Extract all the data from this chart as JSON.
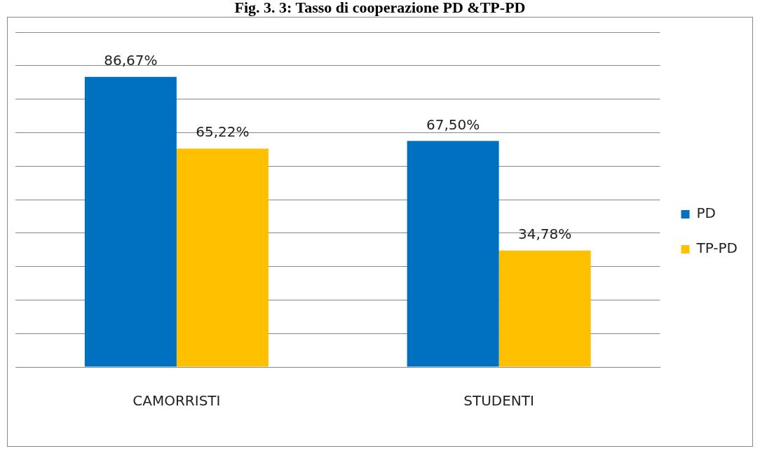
{
  "chart_data": {
    "type": "bar",
    "title": "Fig. 3. 3: Tasso di cooperazione PD &TP-PD",
    "categories": [
      "CAMORRISTI",
      "STUDENTI"
    ],
    "series": [
      {
        "name": "PD",
        "color": "#0070c0",
        "values": [
          86.67,
          67.5
        ],
        "value_labels": [
          "86,67%",
          "67,50%"
        ]
      },
      {
        "name": "TP-PD",
        "color": "#ffc000",
        "values": [
          65.22,
          34.78
        ],
        "value_labels": [
          "65,22%",
          "34,78%"
        ]
      }
    ],
    "ylim": [
      0,
      100
    ],
    "yticks": [
      {
        "value": 0,
        "label": null
      },
      {
        "value": 10,
        "label": null
      },
      {
        "value": 20,
        "label": null
      },
      {
        "value": 30,
        "label": null
      },
      {
        "value": 40,
        "label": null
      },
      {
        "value": 50,
        "label": null
      },
      {
        "value": 60,
        "label": null
      },
      {
        "value": 70,
        "label": null
      },
      {
        "value": 80,
        "label": null
      },
      {
        "value": 90,
        "label": null
      },
      {
        "value": 100,
        "label": null
      }
    ],
    "grid": "y",
    "legend": "right",
    "tick_labels": "x"
  }
}
